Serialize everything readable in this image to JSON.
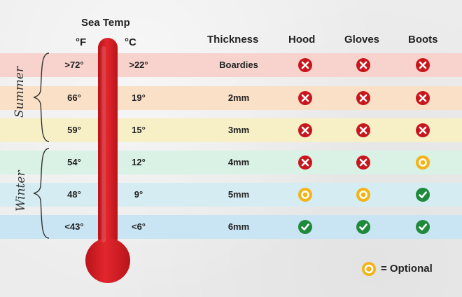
{
  "header": {
    "title": "Sea Temp",
    "unit_f": "°F",
    "unit_c": "°C",
    "thickness": "Thickness",
    "hood": "Hood",
    "gloves": "Gloves",
    "boots": "Boots"
  },
  "seasons": {
    "summer": "Summer",
    "winter": "Winter"
  },
  "rows": [
    {
      "f": ">72°",
      "c": ">22°",
      "thickness": "Boardies",
      "hood": "no",
      "gloves": "no",
      "boots": "no",
      "color": "#f8d3cd"
    },
    {
      "f": "66°",
      "c": "19°",
      "thickness": "2mm",
      "hood": "no",
      "gloves": "no",
      "boots": "no",
      "color": "#fae0c6"
    },
    {
      "f": "59°",
      "c": "15°",
      "thickness": "3mm",
      "hood": "no",
      "gloves": "no",
      "boots": "no",
      "color": "#f7f0c6"
    },
    {
      "f": "54°",
      "c": "12°",
      "thickness": "4mm",
      "hood": "no",
      "gloves": "no",
      "boots": "optional",
      "color": "#daf1e6"
    },
    {
      "f": "48°",
      "c": "9°",
      "thickness": "5mm",
      "hood": "optional",
      "gloves": "optional",
      "boots": "yes",
      "color": "#d5edf2"
    },
    {
      "f": "<43°",
      "c": "<6°",
      "thickness": "6mm",
      "hood": "yes",
      "gloves": "yes",
      "boots": "yes",
      "color": "#c9e4f2"
    }
  ],
  "legend": {
    "label": "= Optional",
    "icon": "optional-icon"
  },
  "colors": {
    "no": "#c8161d",
    "yes": "#1f8a3c",
    "optional": "#f2b417",
    "thermometer": "#d81f26"
  }
}
